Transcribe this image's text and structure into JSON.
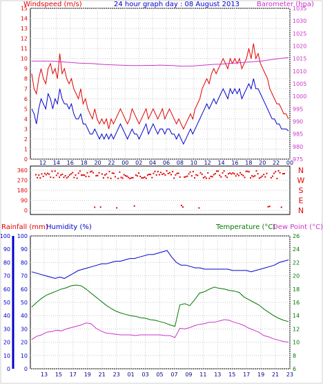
{
  "chart_data": [
    {
      "type": "line",
      "title": "24 hour graph day : 08 August 2013",
      "ylabel_left": "Windspeed (m/s)",
      "ylabel_right": "Barometer (hpa)",
      "ylim_left": [
        0,
        15
      ],
      "ylim_right": [
        975,
        1035
      ],
      "yticks_left": [
        0,
        1,
        2,
        3,
        4,
        5,
        6,
        7,
        8,
        9,
        10,
        11,
        12,
        13,
        14,
        15
      ],
      "yticks_right": [
        975,
        980,
        985,
        990,
        995,
        1000,
        1005,
        1010,
        1015,
        1020,
        1025,
        1030,
        1035
      ],
      "x_labels": [
        "12",
        "14",
        "16",
        "18",
        "20",
        "22",
        "00",
        "02",
        "04",
        "06",
        "08",
        "10",
        "12",
        "14",
        "16",
        "18",
        "20",
        "22",
        "00"
      ],
      "grid": true,
      "colors": {
        "gust": "#e00000",
        "wind": "#0000cc",
        "barometer": "#cc33cc"
      },
      "series": [
        {
          "name": "gust",
          "axis": "left",
          "color": "#e00000",
          "values": [
            8.5,
            7,
            6.5,
            8,
            9,
            8,
            7.5,
            9,
            9.5,
            8.5,
            9,
            8,
            10.5,
            8.5,
            9,
            8,
            7.5,
            8,
            7,
            6.5,
            6,
            7,
            5.5,
            6,
            5,
            4.5,
            4,
            5,
            4,
            3.5,
            4,
            3.5,
            4,
            3,
            4,
            3.5,
            4,
            4.5,
            5,
            4.5,
            4,
            3.5,
            4,
            5,
            4.5,
            4,
            3.5,
            4,
            4.5,
            5,
            4,
            4.5,
            5,
            4.5,
            4,
            4.5,
            5,
            4,
            4.5,
            5,
            4.5,
            4,
            3.5,
            4,
            3.5,
            3,
            3.5,
            4,
            4.5,
            4,
            5,
            5.5,
            6,
            7,
            7.5,
            8,
            7.5,
            8.5,
            9,
            8.5,
            9,
            9.5,
            10,
            9.5,
            9,
            10,
            9.5,
            10,
            9.5,
            10,
            9,
            9.5,
            10,
            11,
            10,
            11.5,
            10,
            10.5,
            9.5,
            9,
            8.5,
            8,
            7,
            6.5,
            6,
            5.5,
            5.5,
            5,
            4.5,
            4.5,
            4
          ]
        },
        {
          "name": "wind",
          "axis": "left",
          "color": "#0000cc",
          "values": [
            5,
            4.5,
            3.5,
            5,
            6,
            5.5,
            5,
            6.5,
            6,
            5,
            6,
            5.5,
            7,
            6,
            5.5,
            5.5,
            5,
            5.5,
            4.5,
            4,
            4,
            4.5,
            3.5,
            3.5,
            3,
            2.5,
            2.5,
            3,
            2.5,
            2,
            2.5,
            2,
            2.5,
            2,
            2.5,
            2,
            2.5,
            3,
            3.5,
            3,
            2.5,
            2,
            2.5,
            3,
            2.5,
            2.5,
            2,
            2.5,
            3,
            3.5,
            2.5,
            3,
            3.5,
            3,
            2.5,
            3,
            3,
            2.5,
            3,
            3,
            2.5,
            2.5,
            2,
            2.5,
            2,
            1.5,
            2,
            2.5,
            3,
            2.5,
            3,
            3.5,
            4,
            4.5,
            5,
            5.5,
            5,
            5.5,
            6,
            5.5,
            6,
            6.5,
            7,
            6.5,
            6,
            7,
            6.5,
            7,
            6.5,
            7,
            6,
            6.5,
            7,
            7.5,
            7,
            8,
            7,
            7,
            6.5,
            6,
            5.5,
            5,
            4.5,
            4,
            4,
            3.5,
            3.5,
            3,
            3,
            3,
            2.8
          ]
        },
        {
          "name": "barometer",
          "axis": "right",
          "color": "#cc33cc",
          "values": [
            1014,
            1014,
            1014,
            1014,
            1013.8,
            1013.6,
            1013.4,
            1013.2,
            1013.1,
            1013,
            1012.8,
            1012.6,
            1012.5,
            1012.4,
            1012.3,
            1012.2,
            1012.2,
            1012.3,
            1012.3,
            1012.4,
            1012.3,
            1012.2,
            1012,
            1012,
            1012.1,
            1012.3,
            1012.5,
            1012.7,
            1012.8,
            1013,
            1013.2,
            1013.4,
            1013.6,
            1013.8,
            1014,
            1014.4,
            1014.8,
            1015.1,
            1015.4
          ]
        }
      ]
    },
    {
      "type": "scatter",
      "ylabel_right": [
        "N",
        "W",
        "S",
        "E",
        "N"
      ],
      "yticks_left": [
        0,
        90,
        180,
        270,
        360
      ],
      "ylim": [
        0,
        360
      ],
      "color": "#e00000"
    },
    {
      "type": "line",
      "ylabel_left_1": "Rainfall (mm)",
      "ylabel_left_2": "Humidity (%)",
      "ylabel_right_1": "Temperature (°C)",
      "ylabel_right_2": "Dew Point (°C)",
      "yticks_humidity": [
        0,
        10,
        20,
        30,
        40,
        50,
        60,
        70,
        80,
        90,
        100
      ],
      "yticks_rain": [
        0,
        10,
        20,
        30,
        40,
        50,
        60,
        70,
        80,
        90,
        100
      ],
      "yticks_temp": [
        6,
        8,
        10,
        12,
        14,
        16,
        18,
        20,
        22,
        24,
        26
      ],
      "ylim_humidity": [
        0,
        100
      ],
      "ylim_temp": [
        6,
        26
      ],
      "x_labels": [
        "13",
        "15",
        "17",
        "19",
        "21",
        "23",
        "01",
        "03",
        "05",
        "07",
        "09",
        "11",
        "13",
        "15",
        "17",
        "19",
        "21",
        "23"
      ],
      "colors": {
        "humidity": "#0000cc",
        "temperature": "#007700",
        "dewpoint": "#cc33cc",
        "rainfall": "#0000cc"
      },
      "series": [
        {
          "name": "humidity",
          "axis": "humidity",
          "color": "#0000cc",
          "values": [
            73,
            72,
            71,
            70,
            69,
            68,
            69,
            68,
            70,
            72,
            74,
            75,
            76,
            77,
            78,
            79,
            79,
            80,
            81,
            81,
            82,
            83,
            83,
            84,
            85,
            86,
            86,
            87,
            88,
            89,
            84,
            80,
            78,
            78,
            77,
            76,
            76,
            75,
            75,
            75,
            75,
            75,
            75,
            74,
            74,
            74,
            74,
            73,
            74,
            75,
            76,
            77,
            78,
            80,
            81,
            82
          ]
        },
        {
          "name": "temperature",
          "axis": "temp",
          "color": "#007700",
          "values": [
            15.3,
            16,
            16.6,
            17.1,
            17.4,
            17.7,
            18,
            18.2,
            18.5,
            18.6,
            18.5,
            18,
            17.4,
            16.8,
            16.2,
            15.6,
            15.1,
            14.7,
            14.4,
            14.2,
            14,
            13.9,
            13.7,
            13.6,
            13.4,
            13.3,
            13.1,
            12.9,
            12.6,
            12.4,
            15.6,
            15.8,
            15.5,
            16.4,
            17.4,
            17.6,
            18,
            18.3,
            18.1,
            18,
            17.8,
            17.7,
            17.5,
            16.8,
            16.4,
            16,
            15.6,
            15,
            14.5,
            14,
            13.6,
            13.3,
            13.1
          ]
        },
        {
          "name": "dewpoint",
          "axis": "temp",
          "color": "#cc33cc",
          "values": [
            10.4,
            10.9,
            11.1,
            11.5,
            11.6,
            11.8,
            11.7,
            12,
            12.2,
            12.4,
            12.6,
            12.9,
            12.8,
            12.1,
            11.7,
            11.4,
            11.3,
            11.2,
            11.1,
            11.1,
            11.1,
            11,
            11.1,
            11.1,
            11.1,
            11.1,
            11.1,
            11,
            11,
            10.7,
            12.1,
            12,
            12.2,
            12.5,
            12.7,
            12.8,
            13,
            13,
            13.2,
            13.4,
            13.3,
            13,
            12.8,
            12.5,
            12.1,
            11.8,
            11.5,
            11,
            10.8,
            10.5,
            10.3,
            10.1,
            10
          ]
        }
      ]
    }
  ]
}
